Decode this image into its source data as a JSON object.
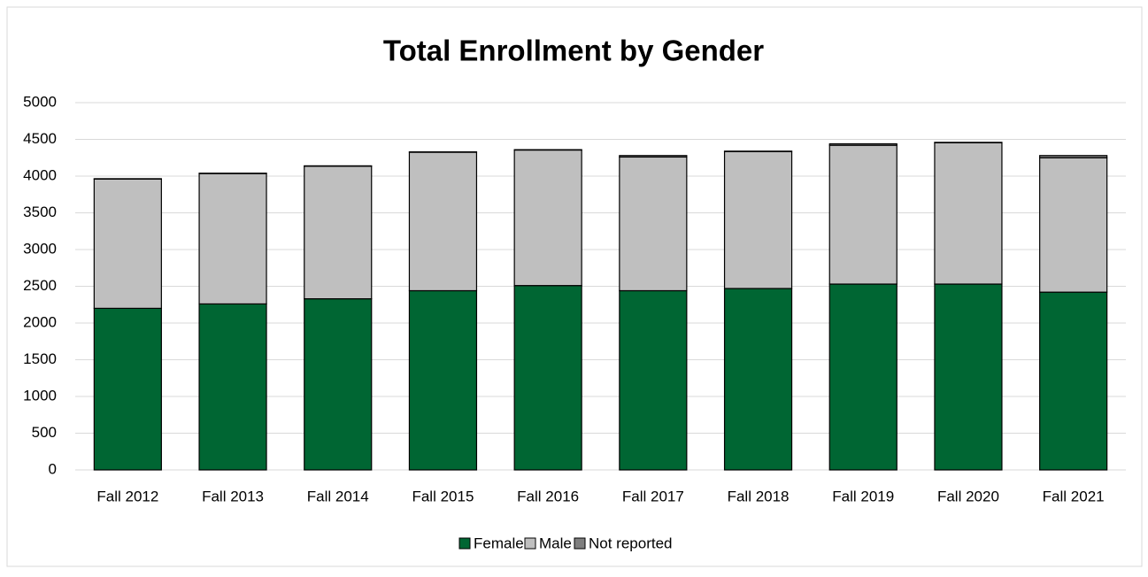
{
  "chart_data": {
    "type": "stacked_bar",
    "title": "Total Enrollment by Gender",
    "categories": [
      "Fall 2012",
      "Fall 2013",
      "Fall 2014",
      "Fall 2015",
      "Fall 2016",
      "Fall 2017",
      "Fall 2018",
      "Fall 2019",
      "Fall 2020",
      "Fall 2021"
    ],
    "series": [
      {
        "name": "Female",
        "color": "#006633",
        "values": [
          2200,
          2260,
          2330,
          2440,
          2510,
          2440,
          2470,
          2530,
          2530,
          2420
        ]
      },
      {
        "name": "Male",
        "color": "#bfbfbf",
        "values": [
          1760,
          1775,
          1805,
          1885,
          1845,
          1820,
          1865,
          1890,
          1925,
          1830
        ]
      },
      {
        "name": "Not reported",
        "color": "#7f7f7f",
        "values": [
          5,
          5,
          5,
          5,
          5,
          20,
          5,
          20,
          5,
          30
        ]
      }
    ],
    "ylim": [
      0,
      5000
    ],
    "yticks": [
      0,
      500,
      1000,
      1500,
      2000,
      2500,
      3000,
      3500,
      4000,
      4500,
      5000
    ],
    "grid": true,
    "legend": "bottom"
  }
}
